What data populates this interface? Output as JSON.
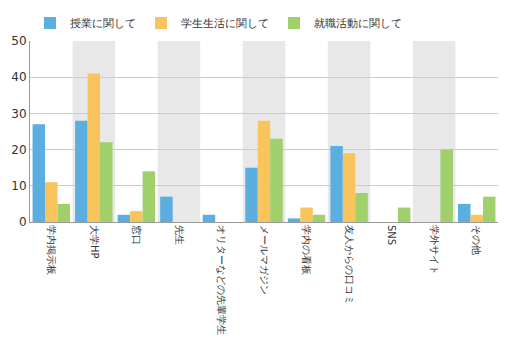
{
  "chart_data": {
    "type": "bar",
    "categories": [
      "学内掲示板",
      "大学HP",
      "窓口",
      "先生",
      "オリターなどの先輩学生",
      "メールマガジン",
      "学内の看板",
      "友人からの口コミ",
      "SNS",
      "学外サイト",
      "その他"
    ],
    "series": [
      {
        "name": "授業に関して",
        "color": "#5aaee0",
        "values": [
          27,
          28,
          2,
          7,
          2,
          15,
          1,
          21,
          0,
          0,
          5
        ]
      },
      {
        "name": "学生生活に関して",
        "color": "#f9c45c",
        "values": [
          11,
          41,
          3,
          0,
          0,
          28,
          4,
          19,
          0,
          0,
          2
        ]
      },
      {
        "name": "就職活動に関して",
        "color": "#9fd06a",
        "values": [
          5,
          22,
          14,
          0,
          0,
          23,
          2,
          8,
          4,
          20,
          7
        ]
      }
    ],
    "ylim": [
      0,
      50
    ],
    "yticks": [
      0,
      10,
      20,
      30,
      40,
      50
    ],
    "grid": true,
    "legend": "top"
  }
}
